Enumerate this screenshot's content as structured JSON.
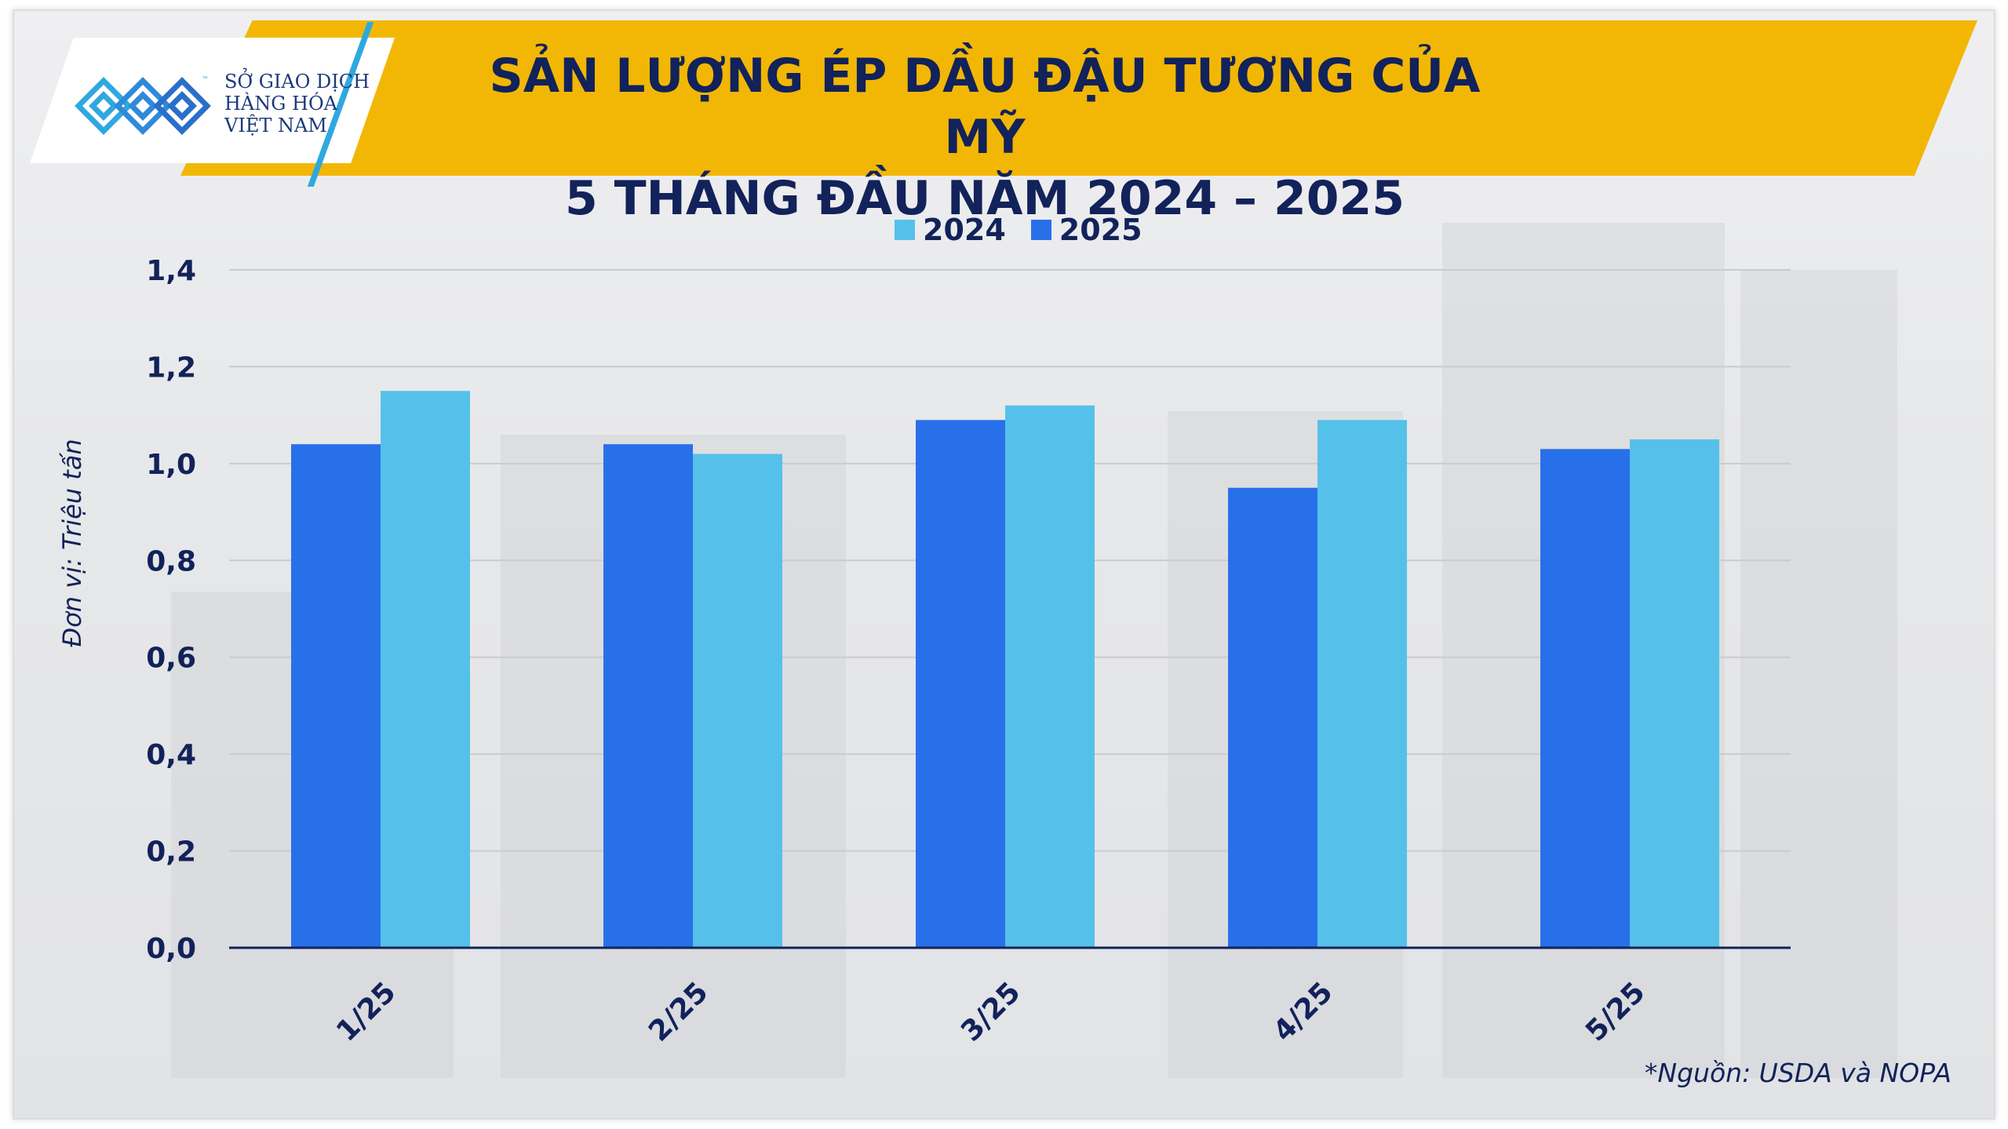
{
  "logo": {
    "line1": "SỞ GIAO DỊCH",
    "line2": "HÀNG HÓA",
    "line3": "VIỆT NAM",
    "tm": "™"
  },
  "header": {
    "title_line1": "SẢN LƯỢNG ÉP DẦU ĐẬU TƯƠNG CỦA MỸ",
    "title_line2": "5 THÁNG ĐẦU NĂM 2024 – 2025"
  },
  "source_note": "*Nguồn: USDA và NOPA",
  "colors": {
    "banner": "#f2b705",
    "title_text": "#12225a",
    "series_2024": "#55c1ea",
    "series_2025": "#2870ea",
    "axis": "#12225a",
    "grid": "#c9cbd0"
  },
  "chart_data": {
    "type": "bar",
    "ylabel": "Đơn vị: Triệu tấn",
    "xlabel": "",
    "categories": [
      "1/25",
      "2/25",
      "3/25",
      "4/25",
      "5/25"
    ],
    "series": [
      {
        "name": "2025",
        "values": [
          1.04,
          1.04,
          1.09,
          0.95,
          1.03
        ]
      },
      {
        "name": "2024",
        "values": [
          1.15,
          1.02,
          1.12,
          1.09,
          1.05
        ]
      }
    ],
    "legend": [
      "2024",
      "2025"
    ],
    "ylim": [
      0,
      1.4
    ],
    "yticks": [
      "0,0",
      "0,2",
      "0,4",
      "0,6",
      "0,8",
      "1,0",
      "1,2",
      "1,4"
    ],
    "grid": true,
    "legend_position": "top-center"
  }
}
